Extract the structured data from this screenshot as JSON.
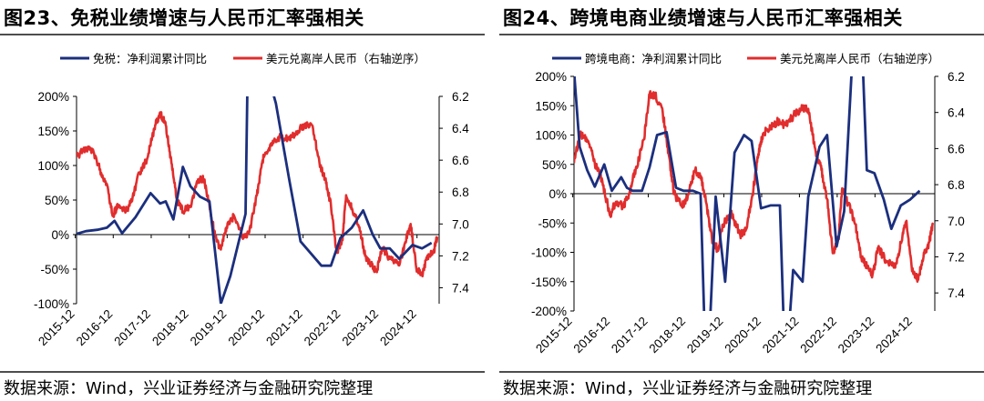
{
  "figures": [
    {
      "title": "图23、免税业绩增速与人民币汇率强相关",
      "source": "数据来源：Wind，兴业证券经济与金融研究院整理"
    },
    {
      "title": "图24、跨境电商业绩增速与人民币汇率强相关",
      "source": "数据来源：Wind，兴业证券经济与金融研究院整理"
    }
  ],
  "colors": {
    "net_profit": "#1b2f7e",
    "usdcnh": "#e12d2d"
  },
  "chart_data": [
    {
      "type": "line",
      "title": "",
      "x_tick_labels": [
        "2015-12",
        "2016-12",
        "2017-12",
        "2018-12",
        "2019-12",
        "2020-12",
        "2021-12",
        "2022-12",
        "2023-12",
        "2024-12"
      ],
      "x_range": [
        2015.95,
        2025.5
      ],
      "y_left": {
        "ticks": [
          -100,
          -50,
          0,
          50,
          100,
          150,
          200
        ],
        "tick_labels": [
          "-100%",
          "-50%",
          "0%",
          "50%",
          "100%",
          "150%",
          "200%"
        ],
        "range": [
          -100,
          200
        ]
      },
      "y_right": {
        "ticks": [
          6.2,
          6.4,
          6.6,
          6.8,
          7.0,
          7.2,
          7.4
        ],
        "tick_labels": [
          "6.2",
          "6.4",
          "6.6",
          "6.8",
          "7.0",
          "7.2",
          "7.4"
        ],
        "range": [
          6.2,
          7.5
        ],
        "inverted": true
      },
      "legend_position": "top",
      "grid": false,
      "series": [
        {
          "name": "免税：净利润累计同比",
          "axis": "left",
          "color": "#1b2f7e",
          "points": [
            [
              2015.95,
              1
            ],
            [
              2016.2,
              5
            ],
            [
              2016.5,
              7
            ],
            [
              2016.75,
              10
            ],
            [
              2016.95,
              20
            ],
            [
              2017.15,
              2
            ],
            [
              2017.5,
              25
            ],
            [
              2017.9,
              60
            ],
            [
              2018.15,
              45
            ],
            [
              2018.3,
              48
            ],
            [
              2018.5,
              22
            ],
            [
              2018.75,
              98
            ],
            [
              2018.95,
              70
            ],
            [
              2019.2,
              55
            ],
            [
              2019.45,
              48
            ],
            [
              2019.75,
              -100
            ],
            [
              2020.0,
              -60
            ],
            [
              2020.4,
              30
            ],
            [
              2020.45,
              210
            ],
            [
              2020.75,
              210
            ],
            [
              2021.1,
              210
            ],
            [
              2021.2,
              190
            ],
            [
              2021.55,
              80
            ],
            [
              2021.85,
              -10
            ],
            [
              2022.4,
              -45
            ],
            [
              2022.65,
              -45
            ],
            [
              2022.9,
              -5
            ],
            [
              2023.2,
              10
            ],
            [
              2023.5,
              35
            ],
            [
              2023.75,
              0
            ],
            [
              2023.95,
              -20
            ],
            [
              2024.2,
              -20
            ],
            [
              2024.45,
              -35
            ],
            [
              2024.8,
              -15
            ],
            [
              2025.05,
              -20
            ],
            [
              2025.3,
              -12
            ]
          ]
        },
        {
          "name": "美元兑离岸人民币（右轴逆序）",
          "axis": "right",
          "color": "#e12d2d",
          "points": [
            [
              2015.95,
              6.58
            ],
            [
              2016.2,
              6.52
            ],
            [
              2016.4,
              6.55
            ],
            [
              2016.6,
              6.68
            ],
            [
              2016.75,
              6.75
            ],
            [
              2016.9,
              6.95
            ],
            [
              2017.05,
              6.88
            ],
            [
              2017.25,
              6.92
            ],
            [
              2017.4,
              6.86
            ],
            [
              2017.6,
              6.68
            ],
            [
              2017.8,
              6.6
            ],
            [
              2018.0,
              6.4
            ],
            [
              2018.15,
              6.3
            ],
            [
              2018.3,
              6.38
            ],
            [
              2018.45,
              6.62
            ],
            [
              2018.6,
              6.85
            ],
            [
              2018.75,
              6.92
            ],
            [
              2018.95,
              6.89
            ],
            [
              2019.15,
              6.72
            ],
            [
              2019.3,
              6.72
            ],
            [
              2019.45,
              6.88
            ],
            [
              2019.6,
              7.08
            ],
            [
              2019.75,
              7.16
            ],
            [
              2019.9,
              7.02
            ],
            [
              2020.1,
              6.95
            ],
            [
              2020.35,
              7.08
            ],
            [
              2020.5,
              7.05
            ],
            [
              2020.7,
              6.82
            ],
            [
              2020.85,
              6.6
            ],
            [
              2020.95,
              6.55
            ],
            [
              2021.15,
              6.48
            ],
            [
              2021.35,
              6.45
            ],
            [
              2021.55,
              6.47
            ],
            [
              2021.75,
              6.42
            ],
            [
              2021.95,
              6.38
            ],
            [
              2022.15,
              6.38
            ],
            [
              2022.35,
              6.62
            ],
            [
              2022.5,
              6.72
            ],
            [
              2022.65,
              6.88
            ],
            [
              2022.8,
              7.18
            ],
            [
              2022.95,
              7.1
            ],
            [
              2023.05,
              6.82
            ],
            [
              2023.2,
              6.9
            ],
            [
              2023.4,
              7.02
            ],
            [
              2023.55,
              7.2
            ],
            [
              2023.7,
              7.25
            ],
            [
              2023.85,
              7.3
            ],
            [
              2024.0,
              7.15
            ],
            [
              2024.2,
              7.22
            ],
            [
              2024.45,
              7.26
            ],
            [
              2024.6,
              7.12
            ],
            [
              2024.75,
              7.0
            ],
            [
              2024.9,
              7.28
            ],
            [
              2025.05,
              7.32
            ],
            [
              2025.2,
              7.2
            ],
            [
              2025.35,
              7.18
            ],
            [
              2025.45,
              7.08
            ]
          ]
        }
      ]
    },
    {
      "type": "line",
      "title": "",
      "x_tick_labels": [
        "2015-12",
        "2016-12",
        "2017-12",
        "2018-12",
        "2019-12",
        "2020-12",
        "2021-12",
        "2022-12",
        "2023-12",
        "2024-12"
      ],
      "x_range": [
        2015.95,
        2025.5
      ],
      "y_left": {
        "ticks": [
          -200,
          -150,
          -100,
          -50,
          0,
          50,
          100,
          150,
          200
        ],
        "tick_labels": [
          "-200%",
          "-150%",
          "-100%",
          "-50%",
          "0%",
          "50%",
          "100%",
          "150%",
          "200%"
        ],
        "range": [
          -200,
          200
        ]
      },
      "y_right": {
        "ticks": [
          6.2,
          6.4,
          6.6,
          6.8,
          7.0,
          7.2,
          7.4
        ],
        "tick_labels": [
          "6.2",
          "6.4",
          "6.6",
          "6.8",
          "7.0",
          "7.2",
          "7.4"
        ],
        "range": [
          6.2,
          7.5
        ],
        "inverted": true
      },
      "legend_position": "top",
      "grid": false,
      "series": [
        {
          "name": "跨境电商：净利润累计同比",
          "axis": "left",
          "color": "#1b2f7e",
          "points": [
            [
              2015.95,
              210
            ],
            [
              2016.1,
              80
            ],
            [
              2016.3,
              40
            ],
            [
              2016.5,
              12
            ],
            [
              2016.75,
              50
            ],
            [
              2016.95,
              5
            ],
            [
              2017.2,
              28
            ],
            [
              2017.35,
              10
            ],
            [
              2017.5,
              5
            ],
            [
              2017.75,
              5
            ],
            [
              2017.95,
              45
            ],
            [
              2018.15,
              100
            ],
            [
              2018.4,
              105
            ],
            [
              2018.65,
              10
            ],
            [
              2018.85,
              5
            ],
            [
              2019.1,
              5
            ],
            [
              2019.3,
              0
            ],
            [
              2019.4,
              -220
            ],
            [
              2019.55,
              -220
            ],
            [
              2019.7,
              -5
            ],
            [
              2019.95,
              -150
            ],
            [
              2020.2,
              70
            ],
            [
              2020.45,
              100
            ],
            [
              2020.65,
              90
            ],
            [
              2020.9,
              -25
            ],
            [
              2021.15,
              -20
            ],
            [
              2021.4,
              -20
            ],
            [
              2021.5,
              -220
            ],
            [
              2021.65,
              -220
            ],
            [
              2021.75,
              -130
            ],
            [
              2022.0,
              -150
            ],
            [
              2022.15,
              -5
            ],
            [
              2022.45,
              80
            ],
            [
              2022.65,
              100
            ],
            [
              2022.9,
              -90
            ],
            [
              2023.1,
              -30
            ],
            [
              2023.3,
              210
            ],
            [
              2023.6,
              210
            ],
            [
              2023.7,
              40
            ],
            [
              2023.9,
              35
            ],
            [
              2024.15,
              -10
            ],
            [
              2024.35,
              -60
            ],
            [
              2024.6,
              -20
            ],
            [
              2024.85,
              -10
            ],
            [
              2025.1,
              5
            ]
          ]
        },
        {
          "name": "美元兑离岸人民币（右轴逆序）",
          "axis": "right",
          "color": "#e12d2d",
          "points": [
            [
              2015.95,
              6.68
            ],
            [
              2016.1,
              6.52
            ],
            [
              2016.3,
              6.55
            ],
            [
              2016.5,
              6.68
            ],
            [
              2016.7,
              6.78
            ],
            [
              2016.9,
              6.97
            ],
            [
              2017.05,
              6.9
            ],
            [
              2017.25,
              6.92
            ],
            [
              2017.4,
              6.86
            ],
            [
              2017.6,
              6.7
            ],
            [
              2017.8,
              6.55
            ],
            [
              2017.95,
              6.3
            ],
            [
              2018.1,
              6.3
            ],
            [
              2018.3,
              6.4
            ],
            [
              2018.45,
              6.62
            ],
            [
              2018.6,
              6.85
            ],
            [
              2018.8,
              6.92
            ],
            [
              2018.95,
              6.88
            ],
            [
              2019.15,
              6.72
            ],
            [
              2019.3,
              6.75
            ],
            [
              2019.45,
              6.9
            ],
            [
              2019.6,
              7.1
            ],
            [
              2019.75,
              7.16
            ],
            [
              2019.9,
              7.02
            ],
            [
              2020.1,
              6.95
            ],
            [
              2020.35,
              7.08
            ],
            [
              2020.5,
              7.05
            ],
            [
              2020.7,
              6.82
            ],
            [
              2020.85,
              6.6
            ],
            [
              2020.95,
              6.52
            ],
            [
              2021.15,
              6.48
            ],
            [
              2021.35,
              6.45
            ],
            [
              2021.55,
              6.47
            ],
            [
              2021.75,
              6.42
            ],
            [
              2021.95,
              6.38
            ],
            [
              2022.15,
              6.38
            ],
            [
              2022.35,
              6.62
            ],
            [
              2022.5,
              6.72
            ],
            [
              2022.65,
              6.88
            ],
            [
              2022.8,
              7.18
            ],
            [
              2022.95,
              7.1
            ],
            [
              2023.05,
              6.82
            ],
            [
              2023.2,
              6.9
            ],
            [
              2023.4,
              7.02
            ],
            [
              2023.55,
              7.2
            ],
            [
              2023.7,
              7.25
            ],
            [
              2023.85,
              7.3
            ],
            [
              2024.0,
              7.15
            ],
            [
              2024.2,
              7.22
            ],
            [
              2024.45,
              7.26
            ],
            [
              2024.6,
              7.12
            ],
            [
              2024.75,
              7.0
            ],
            [
              2024.9,
              7.28
            ],
            [
              2025.05,
              7.32
            ],
            [
              2025.2,
              7.2
            ],
            [
              2025.35,
              7.12
            ],
            [
              2025.45,
              7.02
            ]
          ]
        }
      ]
    }
  ]
}
